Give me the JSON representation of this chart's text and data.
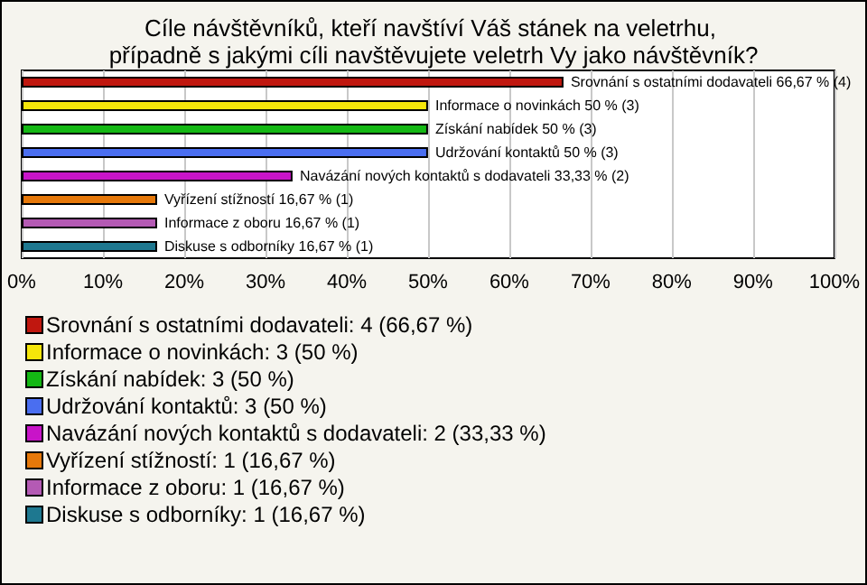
{
  "chart_data": {
    "type": "bar",
    "orientation": "horizontal",
    "stacked": true,
    "title": "Cíle návštěvníků, kteří navštíví Váš stánek na veletrhu, případně s jakými cíli navštěvujete veletrh Vy jako návštěvník?",
    "categories": [
      null,
      null,
      null,
      null,
      null,
      null,
      null,
      null
    ],
    "series": [
      {
        "name": "Srovnání s ostatními dodavateli: 4 (66,67 %)",
        "color": "#c0170f",
        "values": [
          66.67,
          null,
          null,
          null,
          null,
          null,
          null,
          null
        ],
        "value_labels": [
          "Srovnání s ostatními dodavateli 66,67 % (4)",
          null,
          null,
          null,
          null,
          null,
          null,
          null
        ]
      },
      {
        "name": "Informace o novinkách: 3 (50 %)",
        "color": "#f5e60a",
        "values": [
          null,
          50,
          null,
          null,
          null,
          null,
          null,
          null
        ],
        "value_labels": [
          null,
          "Informace o novinkách 50 % (3)",
          null,
          null,
          null,
          null,
          null,
          null
        ]
      },
      {
        "name": "Získání nabídek: 3 (50 %)",
        "color": "#14b814",
        "values": [
          null,
          null,
          50,
          null,
          null,
          null,
          null,
          null
        ],
        "value_labels": [
          null,
          null,
          "Získání nabídek 50 % (3)",
          null,
          null,
          null,
          null,
          null
        ]
      },
      {
        "name": "Udržování kontaktů: 3 (50 %)",
        "color": "#4a6ef0",
        "values": [
          null,
          null,
          null,
          50,
          null,
          null,
          null,
          null
        ],
        "value_labels": [
          null,
          null,
          null,
          "Udržování kontaktů 50 % (3)",
          null,
          null,
          null,
          null
        ]
      },
      {
        "name": "Navázání nových kontaktů s dodavateli: 2 (33,33 %)",
        "color": "#c814c8",
        "values": [
          null,
          null,
          null,
          null,
          33.33,
          null,
          null,
          null
        ],
        "value_labels": [
          null,
          null,
          null,
          null,
          "Navázání nových kontaktů s dodavateli 33,33 % (2)",
          null,
          null,
          null
        ]
      },
      {
        "name": "Vyřízení stížností: 1 (16,67 %)",
        "color": "#e6780a",
        "values": [
          null,
          null,
          null,
          null,
          null,
          16.67,
          null,
          null
        ],
        "value_labels": [
          null,
          null,
          null,
          null,
          null,
          "Vyřízení stížností 16,67 % (1)",
          null,
          null
        ]
      },
      {
        "name": "Informace z oboru: 1 (16,67 %)",
        "color": "#b45ab4",
        "values": [
          null,
          null,
          null,
          null,
          null,
          null,
          16.67,
          null
        ],
        "value_labels": [
          null,
          null,
          null,
          null,
          null,
          null,
          "Informace z oboru 16,67 % (1)",
          null
        ]
      },
      {
        "name": "Diskuse s odborníky: 1 (16,67 %)",
        "color": "#1e7890",
        "values": [
          null,
          null,
          null,
          null,
          null,
          null,
          null,
          16.67
        ],
        "value_labels": [
          null,
          null,
          null,
          null,
          null,
          null,
          null,
          "Diskuse s odborníky 16,67 % (1)"
        ]
      }
    ],
    "xlim": [
      0,
      100
    ],
    "xticks": [
      {
        "value": 0,
        "label": "0%"
      },
      {
        "value": 10,
        "label": "10%"
      },
      {
        "value": 20,
        "label": "20%"
      },
      {
        "value": 30,
        "label": "30%"
      },
      {
        "value": 40,
        "label": "40%"
      },
      {
        "value": 50,
        "label": "50%"
      },
      {
        "value": 60,
        "label": "60%"
      },
      {
        "value": 70,
        "label": "70%"
      },
      {
        "value": 80,
        "label": "80%"
      },
      {
        "value": 90,
        "label": "90%"
      },
      {
        "value": 100,
        "label": "100%"
      }
    ],
    "grid": "x",
    "legend": "bottom"
  }
}
